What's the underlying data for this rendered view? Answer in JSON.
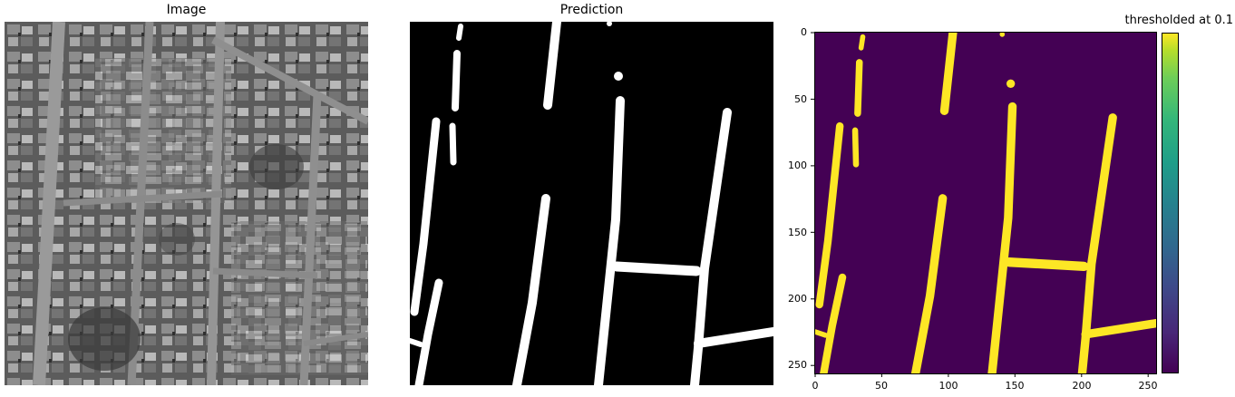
{
  "panels": {
    "image": {
      "title": "Image"
    },
    "prediction": {
      "title": "Prediction"
    },
    "thresholded": {
      "title": "thresholded at 0.1",
      "x_ticks": [
        "0",
        "50",
        "100",
        "150",
        "200",
        "250"
      ],
      "y_ticks": [
        "0",
        "50",
        "100",
        "150",
        "200",
        "250"
      ]
    }
  },
  "colors": {
    "mask_foreground": "#ffffff",
    "mask_background": "#000000",
    "viridis_low": "#440154",
    "viridis_high": "#fde725"
  },
  "colormap": "viridis"
}
